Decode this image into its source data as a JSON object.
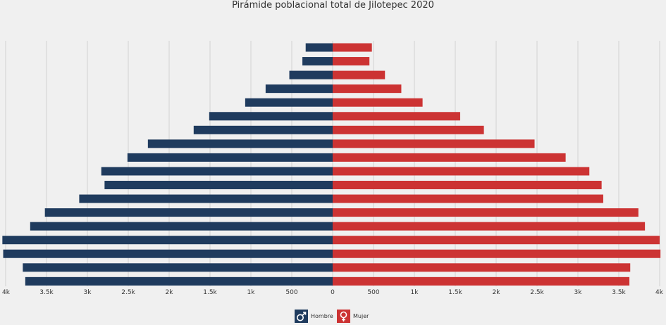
{
  "chart_data": {
    "type": "bar",
    "title": "Pirámide poblacional total de Jilotepec 2020",
    "xlim": [
      -4000,
      4000
    ],
    "tick_values": [
      -4000,
      -3500,
      -3000,
      -2500,
      -2000,
      -1500,
      -1000,
      -500,
      0,
      500,
      1000,
      1500,
      2000,
      2500,
      3000,
      3500,
      4000
    ],
    "tick_labels": [
      "4k",
      "3.5k",
      "3k",
      "2.5k",
      "2k",
      "1.5k",
      "1k",
      "500",
      "0",
      "500",
      "1k",
      "1.5k",
      "2k",
      "2.5k",
      "3k",
      "3.5k",
      "4k"
    ],
    "grid": true,
    "legend_position": "bottom-center",
    "series": [
      {
        "name": "Hombre",
        "color": "#1f3b5e",
        "values": [
          330,
          370,
          530,
          820,
          1070,
          1510,
          1700,
          2260,
          2510,
          2830,
          2790,
          3100,
          3520,
          3700,
          4040,
          4030,
          3790,
          3760
        ]
      },
      {
        "name": "Mujer",
        "color": "#cc3333",
        "values": [
          480,
          450,
          640,
          840,
          1100,
          1560,
          1850,
          2470,
          2850,
          3140,
          3290,
          3310,
          3740,
          3820,
          4000,
          4010,
          3640,
          3630
        ]
      }
    ],
    "legend_icons": [
      "male-symbol-icon",
      "female-symbol-icon"
    ]
  }
}
